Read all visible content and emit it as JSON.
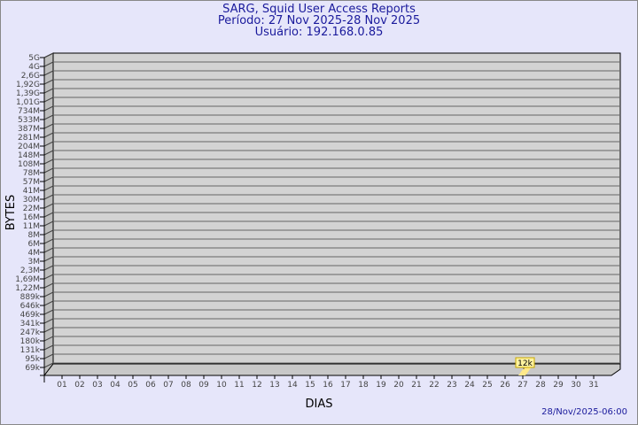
{
  "header": {
    "title": "SARG, Squid User Access Reports",
    "period": "Período: 27 Nov 2025-28 Nov 2025",
    "user": "Usuário: 192.168.0.85"
  },
  "footer": {
    "timestamp": "28/Nov/2025-06:00"
  },
  "colors": {
    "background": "#e6e6fa",
    "plot": "#d3d3d3",
    "bar": "#ffe88a",
    "title": "#1a1a9c"
  },
  "chart_data": {
    "type": "bar",
    "xlabel": "DIAS",
    "ylabel": "BYTES",
    "y_scale": "log",
    "y_ticks": [
      "5G",
      "4G",
      "2,6G",
      "1,92G",
      "1,39G",
      "1,01G",
      "734M",
      "533M",
      "387M",
      "281M",
      "204M",
      "148M",
      "108M",
      "78M",
      "57M",
      "41M",
      "30M",
      "22M",
      "16M",
      "11M",
      "8M",
      "6M",
      "4M",
      "3M",
      "2,3M",
      "1,69M",
      "1,22M",
      "889k",
      "646k",
      "469k",
      "341k",
      "247k",
      "180k",
      "131k",
      "95k",
      "69k"
    ],
    "categories": [
      "01",
      "02",
      "03",
      "04",
      "05",
      "06",
      "07",
      "08",
      "09",
      "10",
      "11",
      "12",
      "13",
      "14",
      "15",
      "16",
      "17",
      "18",
      "19",
      "20",
      "21",
      "22",
      "23",
      "24",
      "25",
      "26",
      "27",
      "28",
      "29",
      "30",
      "31"
    ],
    "bars": [
      {
        "category": "27",
        "value": 12000,
        "label": "12k"
      }
    ],
    "grid": true
  }
}
